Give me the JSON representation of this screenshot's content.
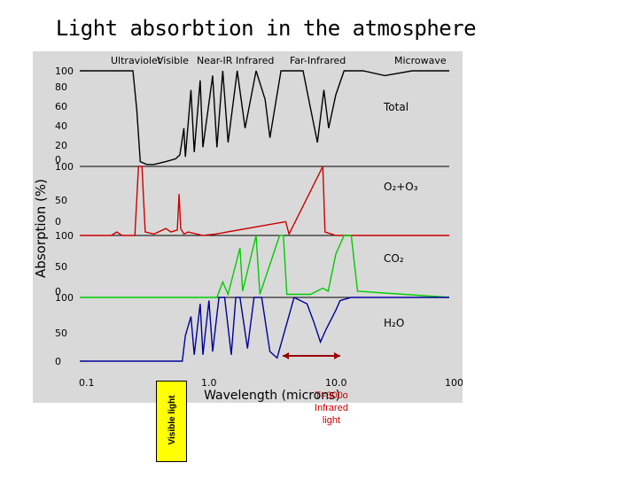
{
  "title": "Light absorbtion in the atmosphere",
  "chart_data": {
    "type": "line",
    "ylabel": "Absorption (%)",
    "xlabel": "Wavelength (microns)",
    "x_scale": "log",
    "xlim": [
      0.1,
      100.0
    ],
    "x_ticks": [
      "0.1",
      "1.0",
      "10.0",
      "100.0"
    ],
    "regions": [
      "Ultraviolet",
      "Visible",
      "Near-IR",
      "Infrared",
      "Far-Infrared",
      "Microwave"
    ],
    "panels": [
      {
        "name": "Total",
        "color": "#000000",
        "y_ticks": [
          "100",
          "80",
          "60",
          "40",
          "20",
          "0"
        ],
        "points": [
          [
            0.1,
            100
          ],
          [
            0.27,
            100
          ],
          [
            0.29,
            60
          ],
          [
            0.31,
            5
          ],
          [
            0.35,
            2
          ],
          [
            0.4,
            2
          ],
          [
            0.5,
            5
          ],
          [
            0.6,
            8
          ],
          [
            0.65,
            12
          ],
          [
            0.7,
            40
          ],
          [
            0.72,
            10
          ],
          [
            0.8,
            80
          ],
          [
            0.85,
            15
          ],
          [
            0.95,
            90
          ],
          [
            1.0,
            20
          ],
          [
            1.2,
            95
          ],
          [
            1.3,
            20
          ],
          [
            1.45,
            100
          ],
          [
            1.6,
            25
          ],
          [
            1.9,
            100
          ],
          [
            2.2,
            40
          ],
          [
            2.7,
            100
          ],
          [
            3.2,
            70
          ],
          [
            3.5,
            30
          ],
          [
            4.3,
            100
          ],
          [
            5.0,
            100
          ],
          [
            6.5,
            100
          ],
          [
            7.5,
            60
          ],
          [
            8.5,
            25
          ],
          [
            9.6,
            80
          ],
          [
            10.5,
            40
          ],
          [
            12,
            75
          ],
          [
            14,
            100
          ],
          [
            20,
            100
          ],
          [
            30,
            95
          ],
          [
            50,
            100
          ],
          [
            100,
            100
          ]
        ]
      },
      {
        "name": "O₂+O₃",
        "color": "#cc0000",
        "y_ticks": [
          "100",
          "50",
          "0"
        ],
        "points": [
          [
            0.1,
            0
          ],
          [
            0.18,
            0
          ],
          [
            0.2,
            5
          ],
          [
            0.22,
            0
          ],
          [
            0.28,
            0
          ],
          [
            0.3,
            100
          ],
          [
            0.32,
            100
          ],
          [
            0.34,
            5
          ],
          [
            0.4,
            2
          ],
          [
            0.5,
            10
          ],
          [
            0.55,
            5
          ],
          [
            0.62,
            8
          ],
          [
            0.64,
            60
          ],
          [
            0.66,
            10
          ],
          [
            0.7,
            2
          ],
          [
            0.76,
            5
          ],
          [
            1.0,
            0
          ],
          [
            1.27,
            2
          ],
          [
            4.7,
            20
          ],
          [
            5,
            2
          ],
          [
            9.4,
            100
          ],
          [
            9.8,
            5
          ],
          [
            12,
            0
          ],
          [
            100,
            0
          ]
        ]
      },
      {
        "name": "CO₂",
        "color": "#00cc00",
        "y_ticks": [
          "100",
          "50",
          "0"
        ],
        "points": [
          [
            0.1,
            0
          ],
          [
            1.3,
            0
          ],
          [
            1.45,
            25
          ],
          [
            1.6,
            5
          ],
          [
            2.0,
            80
          ],
          [
            2.1,
            10
          ],
          [
            2.7,
            100
          ],
          [
            2.9,
            5
          ],
          [
            4.2,
            100
          ],
          [
            4.5,
            100
          ],
          [
            4.8,
            5
          ],
          [
            7.5,
            5
          ],
          [
            9.4,
            15
          ],
          [
            10.4,
            10
          ],
          [
            12,
            70
          ],
          [
            14,
            100
          ],
          [
            16,
            100
          ],
          [
            18,
            10
          ],
          [
            100,
            0
          ]
        ]
      },
      {
        "name": "H₂O",
        "color": "#000099",
        "y_ticks": [
          "100",
          "50",
          "0"
        ],
        "points": [
          [
            0.1,
            0
          ],
          [
            0.68,
            0
          ],
          [
            0.72,
            40
          ],
          [
            0.8,
            70
          ],
          [
            0.85,
            10
          ],
          [
            0.95,
            90
          ],
          [
            1.0,
            10
          ],
          [
            1.12,
            95
          ],
          [
            1.2,
            15
          ],
          [
            1.35,
            100
          ],
          [
            1.5,
            100
          ],
          [
            1.7,
            10
          ],
          [
            1.85,
            100
          ],
          [
            2.0,
            100
          ],
          [
            2.3,
            20
          ],
          [
            2.6,
            100
          ],
          [
            3.0,
            100
          ],
          [
            3.5,
            15
          ],
          [
            4.0,
            5
          ],
          [
            5.5,
            100
          ],
          [
            7,
            90
          ],
          [
            8,
            60
          ],
          [
            9,
            30
          ],
          [
            10,
            50
          ],
          [
            12,
            80
          ],
          [
            13,
            95
          ],
          [
            16,
            100
          ],
          [
            100,
            100
          ]
        ]
      }
    ]
  },
  "annotations": {
    "visible_light": "Visible light",
    "infrared": [
      "T=300o",
      "Infrared",
      "light"
    ]
  }
}
